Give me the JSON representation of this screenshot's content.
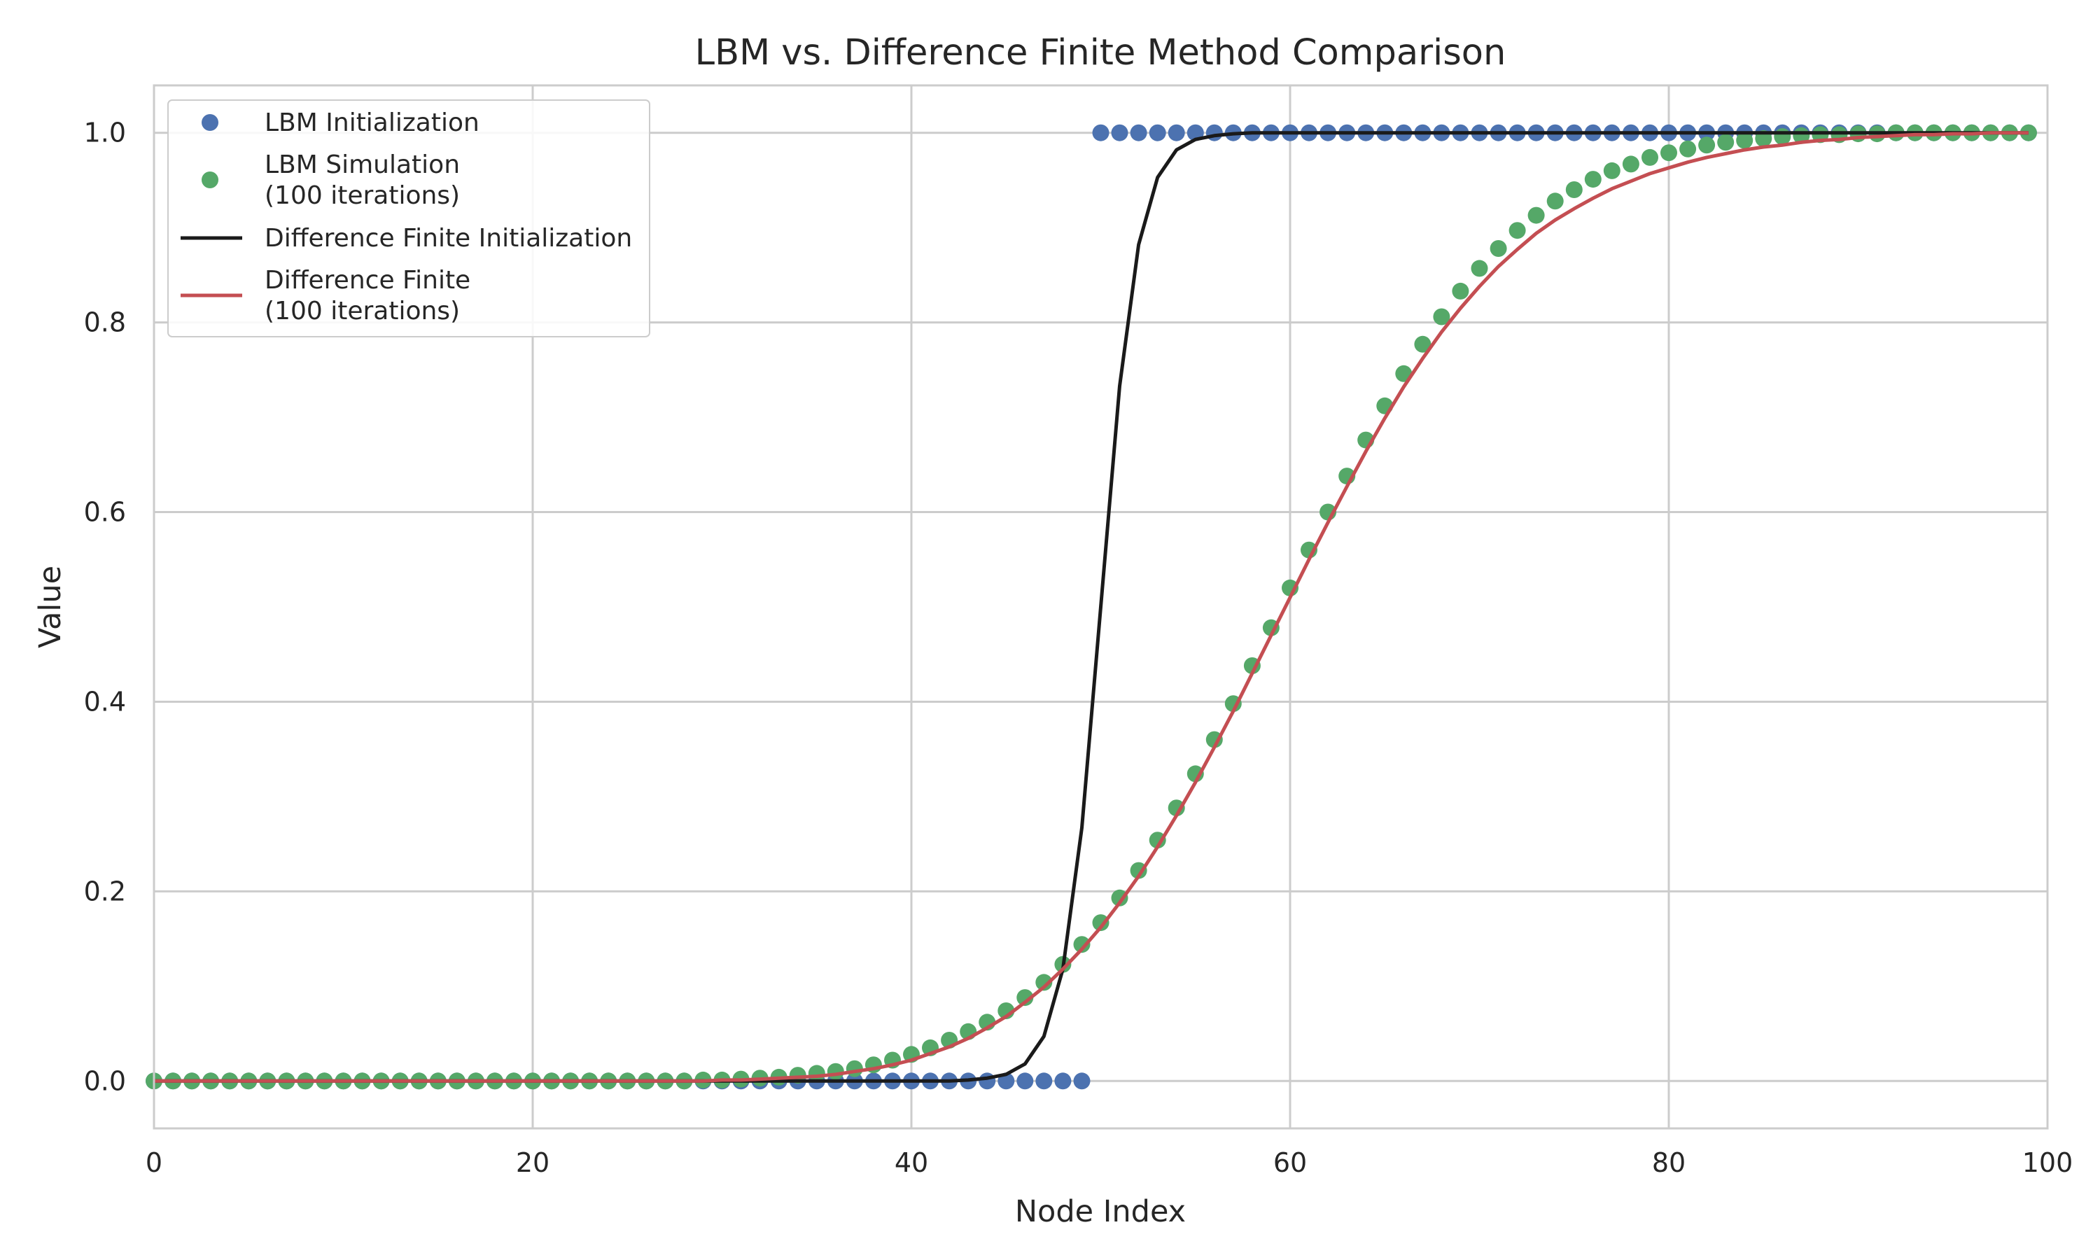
{
  "chart_data": {
    "type": "scatter",
    "title": "LBM vs. Difference Finite Method Comparison",
    "xlabel": "Node Index",
    "ylabel": "Value",
    "xlim": [
      0,
      100
    ],
    "ylim": [
      -0.05,
      1.05
    ],
    "grid": true,
    "legend_position": "top-left",
    "x_ticks": [
      "0",
      "20",
      "40",
      "60",
      "80",
      "100"
    ],
    "y_ticks": [
      "0.0",
      "0.2",
      "0.4",
      "0.6",
      "0.8",
      "1.0"
    ],
    "x_tick_values": [
      0,
      20,
      40,
      60,
      80,
      100
    ],
    "y_tick_values": [
      0.0,
      0.2,
      0.4,
      0.6,
      0.8,
      1.0
    ],
    "series": [
      {
        "name": "LBM Initialization",
        "kind": "points",
        "color": "#4c72b0",
        "x": [
          0,
          1,
          2,
          3,
          4,
          5,
          6,
          7,
          8,
          9,
          10,
          11,
          12,
          13,
          14,
          15,
          16,
          17,
          18,
          19,
          20,
          21,
          22,
          23,
          24,
          25,
          26,
          27,
          28,
          29,
          30,
          31,
          32,
          33,
          34,
          35,
          36,
          37,
          38,
          39,
          40,
          41,
          42,
          43,
          44,
          45,
          46,
          47,
          48,
          49,
          50,
          51,
          52,
          53,
          54,
          55,
          56,
          57,
          58,
          59,
          60,
          61,
          62,
          63,
          64,
          65,
          66,
          67,
          68,
          69,
          70,
          71,
          72,
          73,
          74,
          75,
          76,
          77,
          78,
          79,
          80,
          81,
          82,
          83,
          84,
          85,
          86,
          87,
          88,
          89,
          90,
          91,
          92,
          93,
          94,
          95,
          96,
          97,
          98,
          99
        ],
        "y": [
          0,
          0,
          0,
          0,
          0,
          0,
          0,
          0,
          0,
          0,
          0,
          0,
          0,
          0,
          0,
          0,
          0,
          0,
          0,
          0,
          0,
          0,
          0,
          0,
          0,
          0,
          0,
          0,
          0,
          0,
          0,
          0,
          0,
          0,
          0,
          0,
          0,
          0,
          0,
          0,
          0,
          0,
          0,
          0,
          0,
          0,
          0,
          0,
          0,
          0,
          1,
          1,
          1,
          1,
          1,
          1,
          1,
          1,
          1,
          1,
          1,
          1,
          1,
          1,
          1,
          1,
          1,
          1,
          1,
          1,
          1,
          1,
          1,
          1,
          1,
          1,
          1,
          1,
          1,
          1,
          1,
          1,
          1,
          1,
          1,
          1,
          1,
          1,
          1,
          1,
          1,
          1,
          1,
          1,
          1,
          1,
          1,
          1,
          1,
          1
        ]
      },
      {
        "name": "LBM Simulation\n(100 iterations)",
        "kind": "points",
        "color": "#55a868",
        "x": [
          0,
          1,
          2,
          3,
          4,
          5,
          6,
          7,
          8,
          9,
          10,
          11,
          12,
          13,
          14,
          15,
          16,
          17,
          18,
          19,
          20,
          21,
          22,
          23,
          24,
          25,
          26,
          27,
          28,
          29,
          30,
          31,
          32,
          33,
          34,
          35,
          36,
          37,
          38,
          39,
          40,
          41,
          42,
          43,
          44,
          45,
          46,
          47,
          48,
          49,
          50,
          51,
          52,
          53,
          54,
          55,
          56,
          57,
          58,
          59,
          60,
          61,
          62,
          63,
          64,
          65,
          66,
          67,
          68,
          69,
          70,
          71,
          72,
          73,
          74,
          75,
          76,
          77,
          78,
          79,
          80,
          81,
          82,
          83,
          84,
          85,
          86,
          87,
          88,
          89,
          90,
          91,
          92,
          93,
          94,
          95,
          96,
          97,
          98,
          99
        ],
        "y": [
          0,
          0,
          0,
          0,
          0,
          0,
          0,
          0,
          0,
          0,
          0,
          0,
          0,
          0,
          0,
          0,
          0,
          0,
          0,
          0,
          0,
          0,
          0,
          0,
          0,
          0,
          0,
          0,
          0,
          0.001,
          0.001,
          0.002,
          0.003,
          0.004,
          0.006,
          0.008,
          0.01,
          0.013,
          0.017,
          0.022,
          0.028,
          0.035,
          0.043,
          0.052,
          0.062,
          0.074,
          0.088,
          0.104,
          0.123,
          0.144,
          0.167,
          0.193,
          0.222,
          0.254,
          0.288,
          0.324,
          0.36,
          0.398,
          0.438,
          0.478,
          0.52,
          0.56,
          0.6,
          0.638,
          0.676,
          0.712,
          0.746,
          0.777,
          0.806,
          0.833,
          0.857,
          0.878,
          0.897,
          0.913,
          0.928,
          0.94,
          0.951,
          0.96,
          0.967,
          0.974,
          0.979,
          0.983,
          0.987,
          0.99,
          0.992,
          0.994,
          0.996,
          0.997,
          0.998,
          0.998,
          0.999,
          0.999,
          1,
          1,
          1,
          1,
          1,
          1,
          1,
          1
        ]
      },
      {
        "name": "Difference Finite Initialization",
        "kind": "line",
        "color": "#1a1a1a",
        "x": [
          0,
          1,
          2,
          3,
          4,
          5,
          6,
          7,
          8,
          9,
          10,
          11,
          12,
          13,
          14,
          15,
          16,
          17,
          18,
          19,
          20,
          21,
          22,
          23,
          24,
          25,
          26,
          27,
          28,
          29,
          30,
          31,
          32,
          33,
          34,
          35,
          36,
          37,
          38,
          39,
          40,
          41,
          42,
          43,
          44,
          45,
          46,
          47,
          48,
          49,
          50,
          51,
          52,
          53,
          54,
          55,
          56,
          57,
          58,
          59,
          60,
          61,
          62,
          63,
          64,
          65,
          66,
          67,
          68,
          69,
          70,
          71,
          72,
          73,
          74,
          75,
          76,
          77,
          78,
          79,
          80,
          81,
          82,
          83,
          84,
          85,
          86,
          87,
          88,
          89,
          90,
          91,
          92,
          93,
          94,
          95,
          96,
          97,
          98,
          99
        ],
        "y": [
          0,
          0,
          0,
          0,
          0,
          0,
          0,
          0,
          0,
          0,
          0,
          0,
          0,
          0,
          0,
          0,
          0,
          0,
          0,
          0,
          0,
          0,
          0,
          0,
          0,
          0,
          0,
          0,
          0,
          0,
          0,
          0,
          0,
          0,
          0,
          0,
          0,
          0,
          0,
          0,
          0,
          0,
          0,
          0.001,
          0.003,
          0.007,
          0.018,
          0.047,
          0.118,
          0.267,
          0.5,
          0.733,
          0.882,
          0.953,
          0.982,
          0.993,
          0.997,
          0.999,
          1,
          1,
          1,
          1,
          1,
          1,
          1,
          1,
          1,
          1,
          1,
          1,
          1,
          1,
          1,
          1,
          1,
          1,
          1,
          1,
          1,
          1,
          1,
          1,
          1,
          1,
          1,
          1,
          1,
          1,
          1,
          1,
          1,
          1,
          1,
          1,
          1,
          1,
          1,
          1,
          1,
          1
        ]
      },
      {
        "name": "Difference Finite\n(100 iterations)",
        "kind": "line",
        "color": "#c44e52",
        "x": [
          0,
          1,
          2,
          3,
          4,
          5,
          6,
          7,
          8,
          9,
          10,
          11,
          12,
          13,
          14,
          15,
          16,
          17,
          18,
          19,
          20,
          21,
          22,
          23,
          24,
          25,
          26,
          27,
          28,
          29,
          30,
          31,
          32,
          33,
          34,
          35,
          36,
          37,
          38,
          39,
          40,
          41,
          42,
          43,
          44,
          45,
          46,
          47,
          48,
          49,
          50,
          51,
          52,
          53,
          54,
          55,
          56,
          57,
          58,
          59,
          60,
          61,
          62,
          63,
          64,
          65,
          66,
          67,
          68,
          69,
          70,
          71,
          72,
          73,
          74,
          75,
          76,
          77,
          78,
          79,
          80,
          81,
          82,
          83,
          84,
          85,
          86,
          87,
          88,
          89,
          90,
          91,
          92,
          93,
          94,
          95,
          96,
          97,
          98,
          99
        ],
        "y": [
          0,
          0,
          0,
          0,
          0,
          0,
          0,
          0,
          0,
          0,
          0,
          0,
          0,
          0,
          0,
          0,
          0,
          0,
          0,
          0,
          0,
          0,
          0,
          0,
          0,
          0,
          0,
          0,
          0,
          0,
          0.001,
          0.001,
          0.002,
          0.003,
          0.004,
          0.005,
          0.007,
          0.01,
          0.013,
          0.017,
          0.022,
          0.029,
          0.036,
          0.045,
          0.056,
          0.068,
          0.083,
          0.099,
          0.118,
          0.139,
          0.162,
          0.188,
          0.216,
          0.247,
          0.28,
          0.315,
          0.352,
          0.39,
          0.43,
          0.47,
          0.51,
          0.55,
          0.589,
          0.627,
          0.664,
          0.699,
          0.732,
          0.762,
          0.79,
          0.815,
          0.838,
          0.859,
          0.877,
          0.894,
          0.908,
          0.92,
          0.931,
          0.941,
          0.949,
          0.957,
          0.963,
          0.969,
          0.974,
          0.978,
          0.982,
          0.985,
          0.987,
          0.99,
          0.992,
          0.993,
          0.995,
          0.996,
          0.997,
          0.998,
          0.998,
          0.999,
          0.999,
          1,
          1,
          1
        ]
      }
    ]
  }
}
